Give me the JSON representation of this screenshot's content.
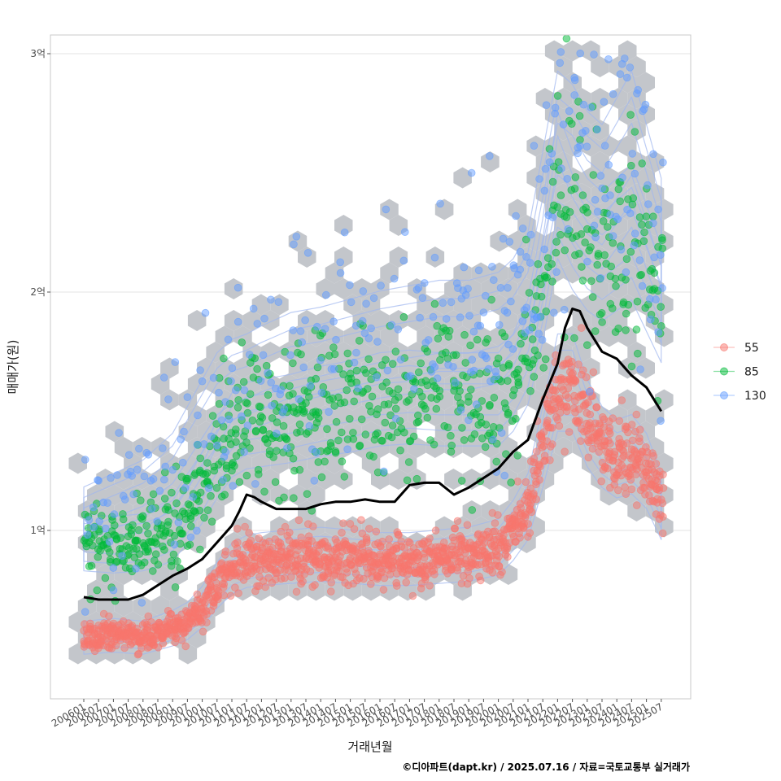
{
  "chart_data": {
    "type": "scatter",
    "ylabel": "매매가(원)",
    "xlabel": "거래년월",
    "caption": "©디아파트(dapt.kr) / 2025.07.16 / 자료=국토교통부 실거래가",
    "ylim": [
      0.35,
      3.1
    ],
    "y_ticks": [
      {
        "value": 1,
        "label": "1억"
      },
      {
        "value": 2,
        "label": "2억"
      },
      {
        "value": 3,
        "label": "3억"
      }
    ],
    "x_ticks": [
      "200601",
      "200607",
      "200701",
      "200707",
      "200801",
      "200807",
      "200901",
      "200907",
      "201001",
      "201007",
      "201101",
      "201107",
      "201201",
      "201207",
      "201301",
      "201307",
      "201401",
      "201407",
      "201501",
      "201507",
      "201601",
      "201607",
      "201701",
      "201707",
      "201801",
      "201807",
      "201901",
      "201907",
      "202001",
      "202007",
      "202101",
      "202107",
      "202201",
      "202207",
      "202301",
      "202307",
      "202401",
      "202407",
      "202501",
      "202507"
    ],
    "grid": true,
    "legend": {
      "position": "right",
      "entries": [
        {
          "label": "55",
          "color": "#f8766d"
        },
        {
          "label": "85",
          "color": "#00ba38"
        },
        {
          "label": "130",
          "color": "#619cff"
        }
      ]
    },
    "layers": [
      "hexbin density (grey)",
      "density contours (blue)",
      "transaction points",
      "median price line (black)"
    ],
    "series": [
      {
        "name": "55",
        "color": "#f8766d",
        "trend": [
          {
            "x": "2006-01",
            "y": 0.55
          },
          {
            "x": "2007-01",
            "y": 0.56
          },
          {
            "x": "2008-01",
            "y": 0.55
          },
          {
            "x": "2008-07",
            "y": 0.57
          },
          {
            "x": "2009-01",
            "y": 0.59
          },
          {
            "x": "2009-07",
            "y": 0.62
          },
          {
            "x": "2010-01",
            "y": 0.68
          },
          {
            "x": "2010-07",
            "y": 0.77
          },
          {
            "x": "2011-01",
            "y": 0.84
          },
          {
            "x": "2011-07",
            "y": 0.87
          },
          {
            "x": "2012-01",
            "y": 0.88
          },
          {
            "x": "2013-01",
            "y": 0.89
          },
          {
            "x": "2014-01",
            "y": 0.9
          },
          {
            "x": "2015-01",
            "y": 0.89
          },
          {
            "x": "2016-01",
            "y": 0.88
          },
          {
            "x": "2017-01",
            "y": 0.88
          },
          {
            "x": "2018-01",
            "y": 0.89
          },
          {
            "x": "2019-01",
            "y": 0.9
          },
          {
            "x": "2020-01",
            "y": 0.93
          },
          {
            "x": "2020-07",
            "y": 1.0
          },
          {
            "x": "2021-01",
            "y": 1.1
          },
          {
            "x": "2021-07",
            "y": 1.35
          },
          {
            "x": "2022-01",
            "y": 1.62
          },
          {
            "x": "2022-07",
            "y": 1.62
          },
          {
            "x": "2023-01",
            "y": 1.45
          },
          {
            "x": "2023-07",
            "y": 1.35
          },
          {
            "x": "2024-01",
            "y": 1.3
          },
          {
            "x": "2024-07",
            "y": 1.32
          },
          {
            "x": "2025-01",
            "y": 1.25
          },
          {
            "x": "2025-07",
            "y": 1.1
          }
        ]
      },
      {
        "name": "85",
        "color": "#00ba38",
        "trend": [
          {
            "x": "2006-01",
            "y": 0.95
          },
          {
            "x": "2007-01",
            "y": 0.94
          },
          {
            "x": "2008-01",
            "y": 0.95
          },
          {
            "x": "2008-07",
            "y": 0.97
          },
          {
            "x": "2009-01",
            "y": 1.0
          },
          {
            "x": "2009-07",
            "y": 1.08
          },
          {
            "x": "2010-01",
            "y": 1.18
          },
          {
            "x": "2010-07",
            "y": 1.3
          },
          {
            "x": "2011-01",
            "y": 1.4
          },
          {
            "x": "2011-07",
            "y": 1.44
          },
          {
            "x": "2012-01",
            "y": 1.45
          },
          {
            "x": "2013-01",
            "y": 1.47
          },
          {
            "x": "2014-01",
            "y": 1.5
          },
          {
            "x": "2015-01",
            "y": 1.52
          },
          {
            "x": "2016-01",
            "y": 1.55
          },
          {
            "x": "2017-01",
            "y": 1.56
          },
          {
            "x": "2018-01",
            "y": 1.55
          },
          {
            "x": "2019-01",
            "y": 1.55
          },
          {
            "x": "2020-01",
            "y": 1.55
          },
          {
            "x": "2020-07",
            "y": 1.62
          },
          {
            "x": "2021-01",
            "y": 1.75
          },
          {
            "x": "2021-07",
            "y": 2.05
          },
          {
            "x": "2022-01",
            "y": 2.45
          },
          {
            "x": "2022-07",
            "y": 2.3
          },
          {
            "x": "2023-01",
            "y": 2.2
          },
          {
            "x": "2023-07",
            "y": 2.15
          },
          {
            "x": "2024-01",
            "y": 2.2
          },
          {
            "x": "2024-07",
            "y": 2.25
          },
          {
            "x": "2025-01",
            "y": 2.1
          },
          {
            "x": "2025-07",
            "y": 1.95
          }
        ]
      },
      {
        "name": "130",
        "color": "#619cff",
        "trend": [
          {
            "x": "2006-01",
            "y": 1.05
          },
          {
            "x": "2007-01",
            "y": 1.1
          },
          {
            "x": "2008-01",
            "y": 1.15
          },
          {
            "x": "2008-07",
            "y": 1.2
          },
          {
            "x": "2009-01",
            "y": 1.25
          },
          {
            "x": "2009-07",
            "y": 1.35
          },
          {
            "x": "2010-01",
            "y": 1.45
          },
          {
            "x": "2010-07",
            "y": 1.55
          },
          {
            "x": "2011-01",
            "y": 1.6
          },
          {
            "x": "2011-07",
            "y": 1.62
          },
          {
            "x": "2012-01",
            "y": 1.65
          },
          {
            "x": "2013-01",
            "y": 1.7
          },
          {
            "x": "2014-01",
            "y": 1.72
          },
          {
            "x": "2015-01",
            "y": 1.75
          },
          {
            "x": "2016-01",
            "y": 1.78
          },
          {
            "x": "2017-01",
            "y": 1.8
          },
          {
            "x": "2018-01",
            "y": 1.82
          },
          {
            "x": "2019-01",
            "y": 1.82
          },
          {
            "x": "2020-01",
            "y": 1.85
          },
          {
            "x": "2020-07",
            "y": 1.9
          },
          {
            "x": "2021-01",
            "y": 2.0
          },
          {
            "x": "2021-07",
            "y": 2.3
          },
          {
            "x": "2022-01",
            "y": 2.6
          },
          {
            "x": "2022-07",
            "y": 2.55
          },
          {
            "x": "2023-01",
            "y": 2.45
          },
          {
            "x": "2023-07",
            "y": 2.4
          },
          {
            "x": "2024-01",
            "y": 2.5
          },
          {
            "x": "2024-07",
            "y": 2.6
          },
          {
            "x": "2025-01",
            "y": 2.4
          },
          {
            "x": "2025-07",
            "y": 2.2
          }
        ]
      }
    ],
    "median_line": [
      {
        "x": "2006-01",
        "y": 0.72
      },
      {
        "x": "2006-07",
        "y": 0.71
      },
      {
        "x": "2007-01",
        "y": 0.71
      },
      {
        "x": "2007-07",
        "y": 0.71
      },
      {
        "x": "2008-01",
        "y": 0.73
      },
      {
        "x": "2008-07",
        "y": 0.77
      },
      {
        "x": "2009-01",
        "y": 0.81
      },
      {
        "x": "2009-07",
        "y": 0.84
      },
      {
        "x": "2010-01",
        "y": 0.88
      },
      {
        "x": "2010-07",
        "y": 0.95
      },
      {
        "x": "2011-01",
        "y": 1.02
      },
      {
        "x": "2011-04",
        "y": 1.08
      },
      {
        "x": "2011-07",
        "y": 1.15
      },
      {
        "x": "2011-10",
        "y": 1.14
      },
      {
        "x": "2012-01",
        "y": 1.12
      },
      {
        "x": "2012-07",
        "y": 1.09
      },
      {
        "x": "2013-01",
        "y": 1.09
      },
      {
        "x": "2013-07",
        "y": 1.09
      },
      {
        "x": "2014-01",
        "y": 1.11
      },
      {
        "x": "2014-07",
        "y": 1.12
      },
      {
        "x": "2015-01",
        "y": 1.12
      },
      {
        "x": "2015-07",
        "y": 1.13
      },
      {
        "x": "2016-01",
        "y": 1.12
      },
      {
        "x": "2016-07",
        "y": 1.12
      },
      {
        "x": "2017-01",
        "y": 1.19
      },
      {
        "x": "2017-07",
        "y": 1.2
      },
      {
        "x": "2018-01",
        "y": 1.2
      },
      {
        "x": "2018-07",
        "y": 1.15
      },
      {
        "x": "2019-01",
        "y": 1.18
      },
      {
        "x": "2019-07",
        "y": 1.22
      },
      {
        "x": "2020-01",
        "y": 1.26
      },
      {
        "x": "2020-07",
        "y": 1.33
      },
      {
        "x": "2021-01",
        "y": 1.38
      },
      {
        "x": "2021-07",
        "y": 1.55
      },
      {
        "x": "2022-01",
        "y": 1.7
      },
      {
        "x": "2022-04",
        "y": 1.85
      },
      {
        "x": "2022-07",
        "y": 1.93
      },
      {
        "x": "2022-10",
        "y": 1.92
      },
      {
        "x": "2023-01",
        "y": 1.85
      },
      {
        "x": "2023-07",
        "y": 1.75
      },
      {
        "x": "2024-01",
        "y": 1.72
      },
      {
        "x": "2024-07",
        "y": 1.65
      },
      {
        "x": "2025-01",
        "y": 1.6
      },
      {
        "x": "2025-07",
        "y": 1.5
      }
    ]
  }
}
